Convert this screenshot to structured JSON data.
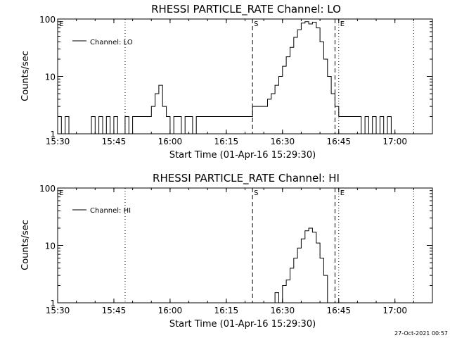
{
  "timestamp": "27-Oct-2021 00:57",
  "chart_data": [
    {
      "type": "line",
      "title": "RHESSI PARTICLE_RATE Channel: LO",
      "xlabel": "Start Time (01-Apr-16 15:29:30)",
      "ylabel": "Counts/sec",
      "y_scale": "log",
      "ylim": [
        1,
        100
      ],
      "xlim": [
        "15:30",
        "17:10"
      ],
      "x_ticks": [
        "15:30",
        "15:45",
        "16:00",
        "16:15",
        "16:30",
        "16:45",
        "17:00"
      ],
      "y_ticks": [
        "1",
        "10",
        "100"
      ],
      "legend": "Channel: LO",
      "legend_position": "top-left",
      "markers": [
        {
          "label": "E",
          "time": "15:30",
          "style": "none"
        },
        {
          "label": "",
          "time": "15:48",
          "style": "dotted"
        },
        {
          "label": "S",
          "time": "16:22",
          "style": "dashed"
        },
        {
          "label": "",
          "time": "16:44",
          "style": "dashed"
        },
        {
          "label": "E",
          "time": "16:45",
          "style": "dotted"
        },
        {
          "label": "",
          "time": "17:05",
          "style": "dotted"
        }
      ],
      "series": [
        {
          "x": [
            "15:30",
            "15:31",
            "15:32",
            "15:33",
            "15:34",
            "15:35",
            "15:36",
            "15:37",
            "15:38",
            "15:39",
            "15:40",
            "15:41",
            "15:42",
            "15:43",
            "15:44",
            "15:45",
            "15:46",
            "15:47",
            "15:48",
            "15:49",
            "15:50",
            "15:51",
            "15:52",
            "15:53",
            "15:54",
            "15:55",
            "15:56",
            "15:57",
            "15:58",
            "15:59",
            "16:00",
            "16:01",
            "16:02",
            "16:03",
            "16:04",
            "16:05",
            "16:06",
            "16:07",
            "16:08",
            "16:09",
            "16:10",
            "16:11",
            "16:12",
            "16:13",
            "16:14",
            "16:15",
            "16:16",
            "16:17",
            "16:18",
            "16:19",
            "16:20",
            "16:21",
            "16:22",
            "16:23",
            "16:24",
            "16:25",
            "16:26",
            "16:27",
            "16:28",
            "16:29",
            "16:30",
            "16:31",
            "16:32",
            "16:33",
            "16:34",
            "16:35",
            "16:36",
            "16:37",
            "16:38",
            "16:39",
            "16:40",
            "16:41",
            "16:42",
            "16:43",
            "16:44",
            "16:45",
            "16:46",
            "16:47",
            "16:48",
            "16:49",
            "16:50",
            "16:51",
            "16:52",
            "16:53",
            "16:54",
            "16:55",
            "16:56",
            "16:57",
            "16:58",
            "16:59"
          ],
          "y": [
            2,
            1,
            2,
            1,
            1,
            1,
            1,
            1,
            1,
            2,
            1,
            2,
            1,
            2,
            1,
            2,
            1,
            1,
            2,
            1,
            2,
            2,
            2,
            2,
            2,
            3,
            5,
            7,
            3,
            2,
            1,
            2,
            2,
            1,
            2,
            2,
            1,
            2,
            2,
            2,
            2,
            2,
            2,
            2,
            2,
            2,
            2,
            2,
            2,
            2,
            2,
            2,
            3,
            3,
            3,
            3,
            4,
            5,
            7,
            10,
            15,
            22,
            32,
            48,
            65,
            85,
            90,
            82,
            88,
            70,
            40,
            20,
            10,
            5,
            3,
            2,
            2,
            2,
            2,
            2,
            2,
            1,
            2,
            1,
            2,
            1,
            2,
            1,
            2,
            1
          ]
        }
      ]
    },
    {
      "type": "line",
      "title": "RHESSI PARTICLE_RATE Channel: HI",
      "xlabel": "Start Time (01-Apr-16 15:29:30)",
      "ylabel": "Counts/sec",
      "y_scale": "log",
      "ylim": [
        1,
        100
      ],
      "xlim": [
        "15:30",
        "17:10"
      ],
      "x_ticks": [
        "15:30",
        "15:45",
        "16:00",
        "16:15",
        "16:30",
        "16:45",
        "17:00"
      ],
      "y_ticks": [
        "1",
        "10",
        "100"
      ],
      "legend": "Channel: HI",
      "legend_position": "top-left",
      "markers": [
        {
          "label": "E",
          "time": "15:30",
          "style": "none"
        },
        {
          "label": "",
          "time": "15:48",
          "style": "dotted"
        },
        {
          "label": "S",
          "time": "16:22",
          "style": "dashed"
        },
        {
          "label": "",
          "time": "16:44",
          "style": "dashed"
        },
        {
          "label": "E",
          "time": "16:45",
          "style": "dotted"
        },
        {
          "label": "",
          "time": "17:05",
          "style": "dotted"
        }
      ],
      "series": [
        {
          "x": [
            "16:26",
            "16:27",
            "16:28",
            "16:29",
            "16:30",
            "16:31",
            "16:32",
            "16:33",
            "16:34",
            "16:35",
            "16:36",
            "16:37",
            "16:38",
            "16:39",
            "16:40",
            "16:41",
            "16:42"
          ],
          "y": [
            1,
            1,
            1.5,
            1,
            2,
            2.5,
            4,
            6,
            9,
            13,
            18,
            20,
            17,
            11,
            6,
            3,
            1
          ]
        }
      ]
    }
  ]
}
